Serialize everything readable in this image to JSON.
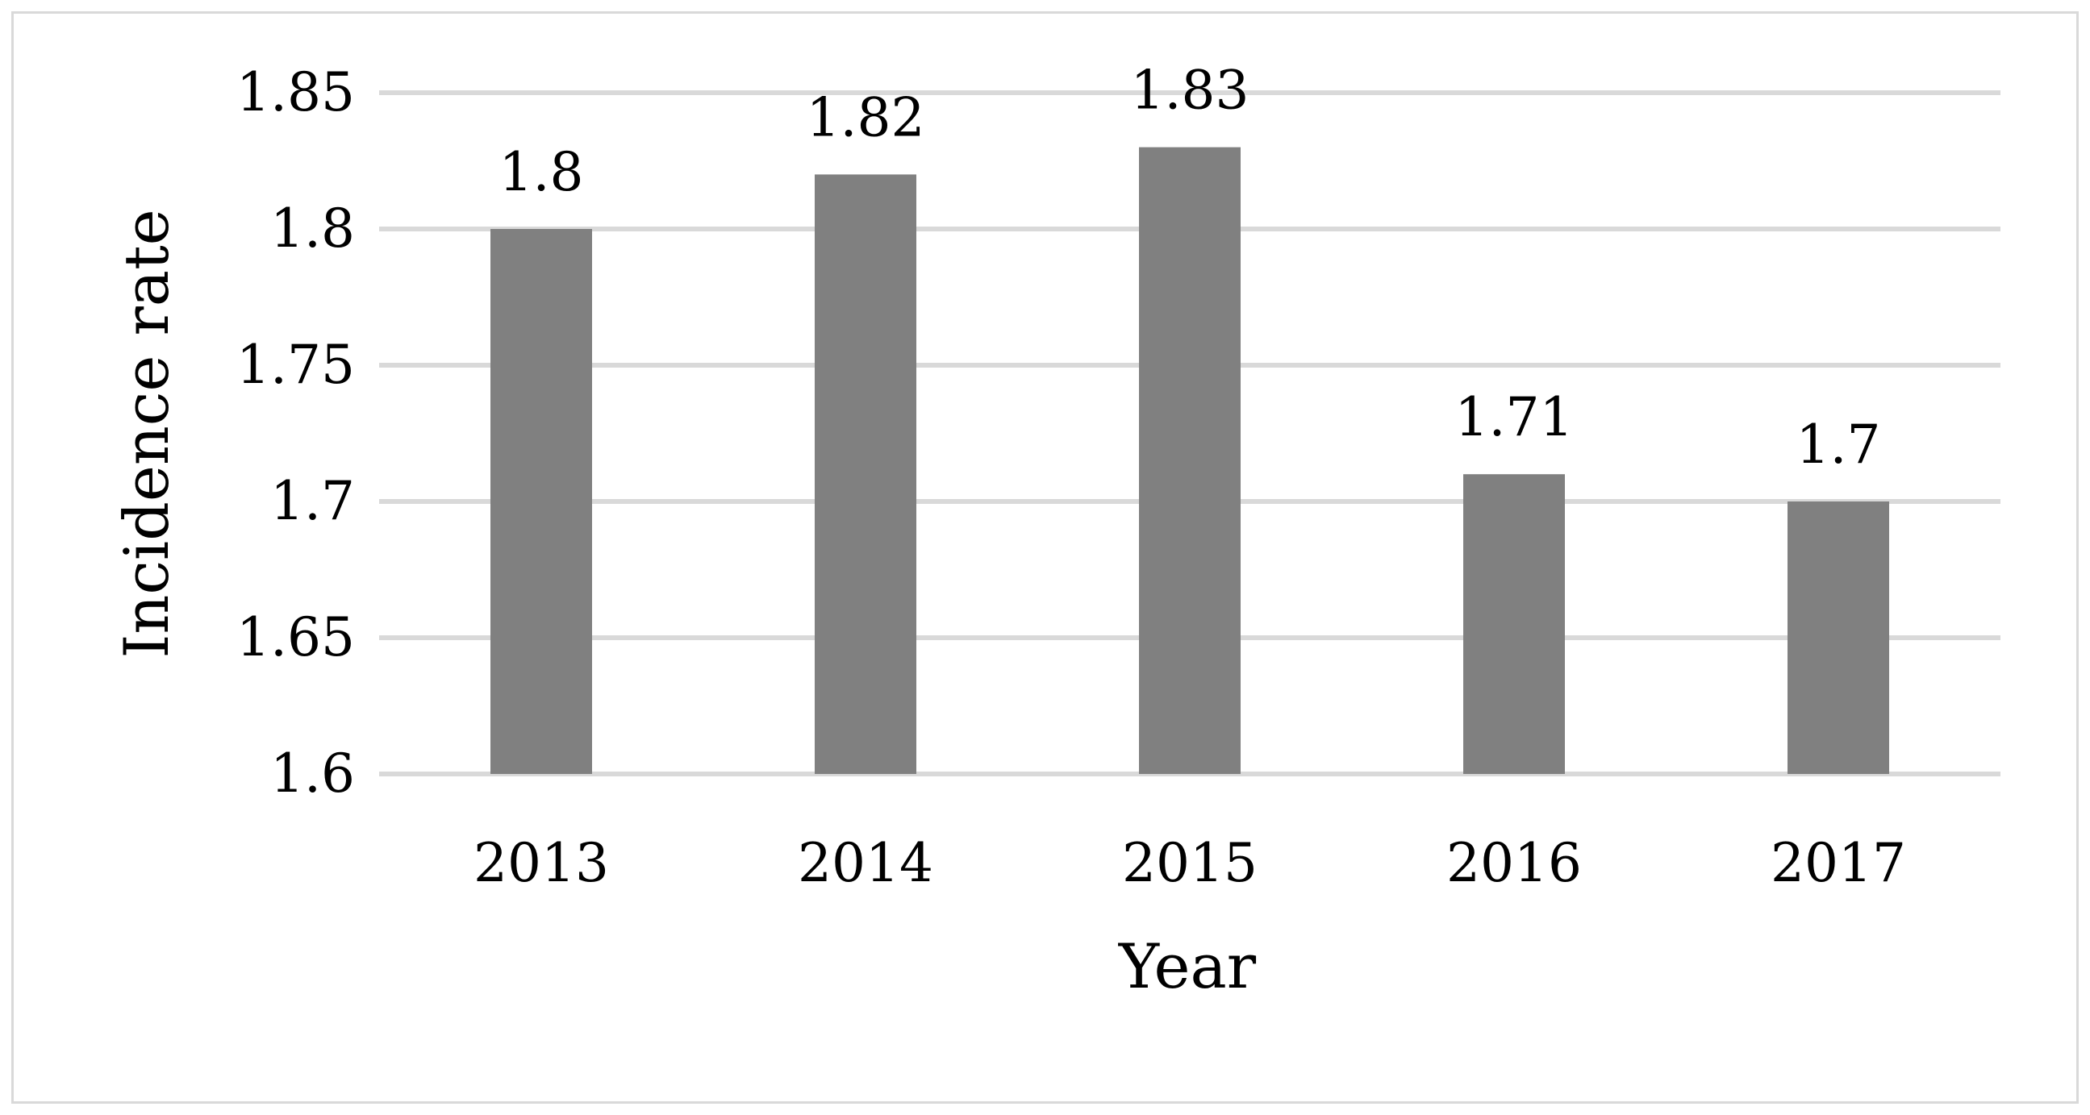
{
  "chart_data": {
    "type": "bar",
    "title": "",
    "xlabel": "Year",
    "ylabel": "Incidence rate",
    "categories": [
      "2013",
      "2014",
      "2015",
      "2016",
      "2017"
    ],
    "values": [
      1.8,
      1.82,
      1.83,
      1.71,
      1.7
    ],
    "data_labels": [
      "1.8",
      "1.82",
      "1.83",
      "1.71",
      "1.7"
    ],
    "ylim": [
      1.6,
      1.85
    ],
    "yticks": [
      1.6,
      1.65,
      1.7,
      1.75,
      1.8,
      1.85
    ],
    "ytick_labels": [
      "1.6",
      "1.65",
      "1.7",
      "1.75",
      "1.8",
      "1.85"
    ],
    "grid": true,
    "legend": "none",
    "bar_color": "#808080",
    "grid_color": "#d9d9d9"
  }
}
